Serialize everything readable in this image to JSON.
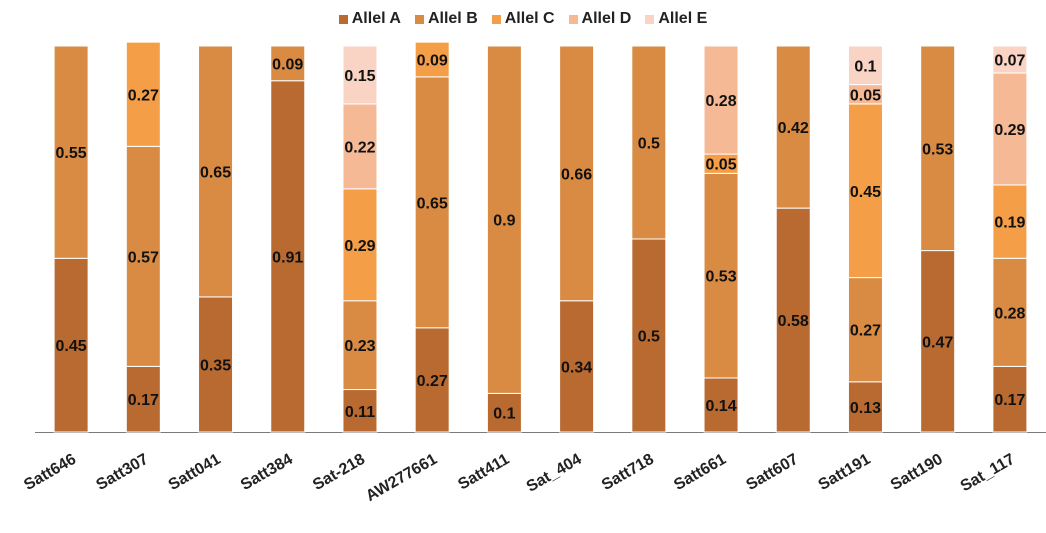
{
  "colors": {
    "Allel A": "#B86A30",
    "Allel B": "#D98B43",
    "Allel C": "#F59E48",
    "Allel D": "#F5B996",
    "Allel E": "#F9D4C4",
    "axis": "#7a7a7a",
    "separator": "#ffffff"
  },
  "chart_data": {
    "type": "bar",
    "stacked": true,
    "categories": [
      "Satt646",
      "Satt307",
      "Satt041",
      "Satt384",
      "Sat-218",
      "AW277661",
      "Satt411",
      "Sat_404",
      "Satt718",
      "Satt661",
      "Satt607",
      "Satt191",
      "Satt190",
      "Sat_117"
    ],
    "series": [
      {
        "name": "Allel A",
        "values": [
          0.45,
          0.17,
          0.35,
          0.91,
          0.11,
          0.27,
          0.1,
          0.34,
          0.5,
          0.14,
          0.58,
          0.13,
          0.47,
          0.17
        ]
      },
      {
        "name": "Allel B",
        "values": [
          0.55,
          0.57,
          0.65,
          0.09,
          0.23,
          0.65,
          0.9,
          0.66,
          0.5,
          0.53,
          0.42,
          0.27,
          0.53,
          0.28
        ]
      },
      {
        "name": "Allel C",
        "values": [
          null,
          0.27,
          null,
          null,
          0.29,
          0.09,
          null,
          null,
          null,
          0.05,
          null,
          0.45,
          null,
          0.19
        ]
      },
      {
        "name": "Allel D",
        "values": [
          null,
          null,
          null,
          null,
          0.22,
          null,
          null,
          null,
          null,
          0.28,
          null,
          0.05,
          null,
          0.29
        ]
      },
      {
        "name": "Allel E",
        "values": [
          null,
          null,
          null,
          null,
          0.15,
          null,
          null,
          null,
          null,
          null,
          null,
          0.1,
          null,
          0.07
        ]
      }
    ],
    "ylim": [
      0,
      1
    ],
    "legend_position": "top",
    "grid": false,
    "data_labels": true
  }
}
